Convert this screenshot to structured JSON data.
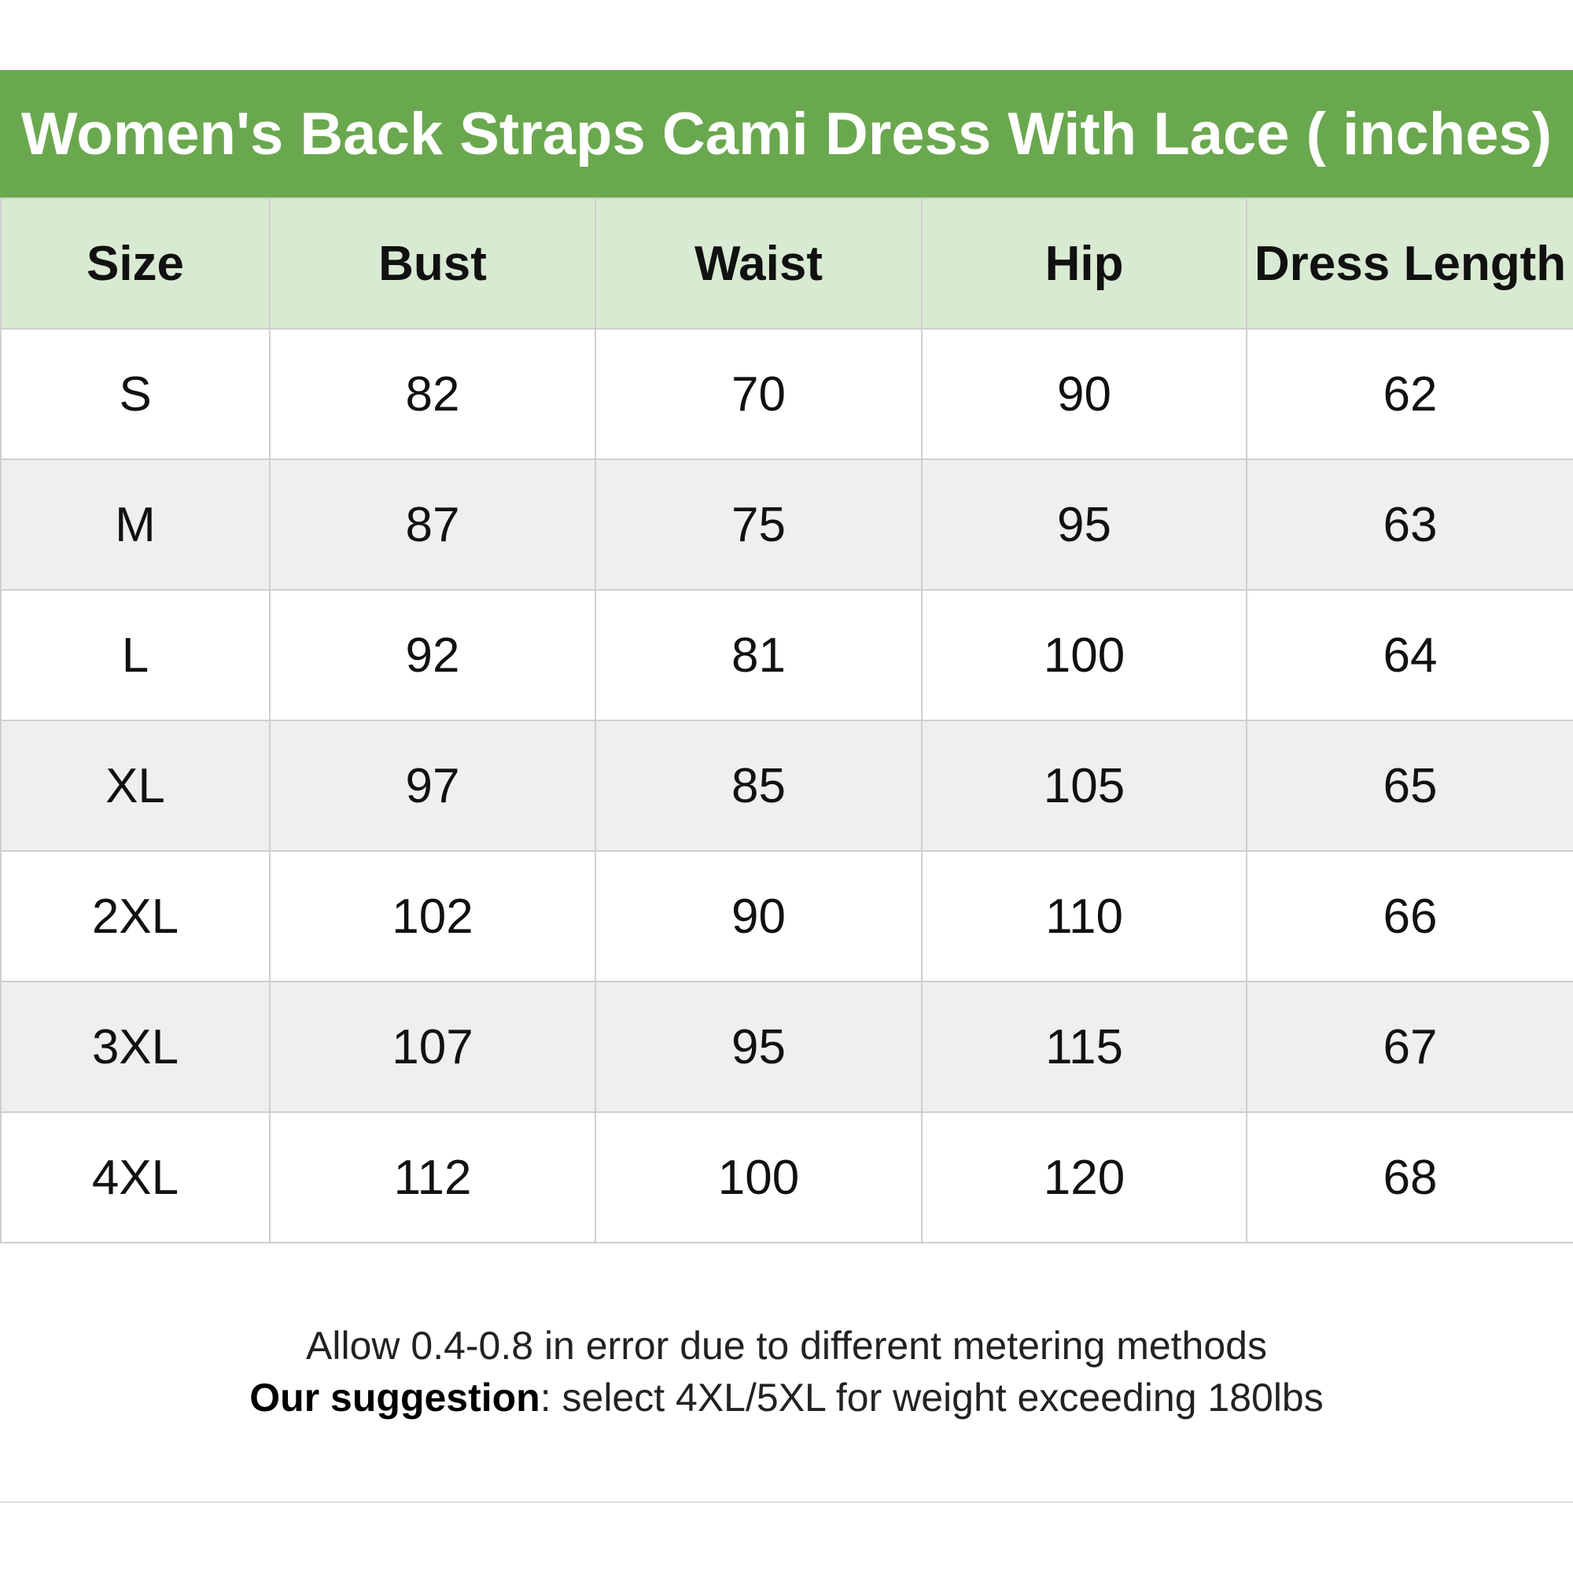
{
  "title": "Women's Back Straps Cami Dress With Lace ( inches)",
  "colors": {
    "title_bg": "#6aa84f",
    "header_bg": "#d9ead3",
    "alt_row_bg": "#efefef"
  },
  "table": {
    "headers": [
      "Size",
      "Bust",
      "Waist",
      "Hip",
      "Dress Length"
    ],
    "rows": [
      [
        "S",
        "82",
        "70",
        "90",
        "62"
      ],
      [
        "M",
        "87",
        "75",
        "95",
        "63"
      ],
      [
        "L",
        "92",
        "81",
        "100",
        "64"
      ],
      [
        "XL",
        "97",
        "85",
        "105",
        "65"
      ],
      [
        "2XL",
        "102",
        "90",
        "110",
        "66"
      ],
      [
        "3XL",
        "107",
        "95",
        "115",
        "67"
      ],
      [
        "4XL",
        "112",
        "100",
        "120",
        "68"
      ]
    ]
  },
  "footer": {
    "line1": "Allow 0.4-0.8 in error due to different metering methods",
    "suggestion_label": "Our suggestion",
    "suggestion_text": ": select 4XL/5XL for weight exceeding 180lbs"
  }
}
